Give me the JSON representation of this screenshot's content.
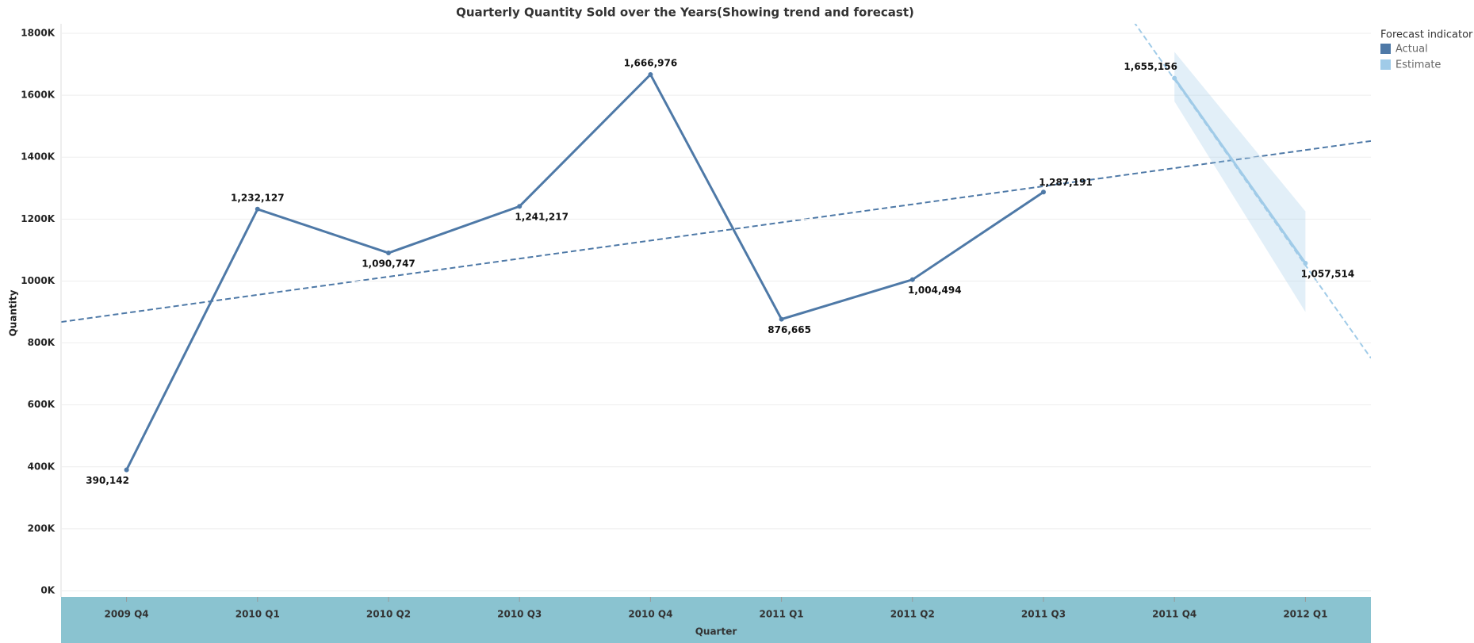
{
  "chart_data": {
    "type": "line",
    "title": "Quarterly Quantity Sold over the Years(Showing trend and forecast)",
    "x_label": "Quarter",
    "y_label": "Quantity",
    "legend_title": "Forecast indicator",
    "legend_position": "top-right",
    "grid": true,
    "categories": [
      "2009 Q4",
      "2010 Q1",
      "2010 Q2",
      "2010 Q3",
      "2010 Q4",
      "2011 Q1",
      "2011 Q2",
      "2011 Q3",
      "2011 Q4",
      "2012 Q1"
    ],
    "ylim": [
      0,
      1800000
    ],
    "yticks": [
      {
        "value": 0,
        "label": "0K"
      },
      {
        "value": 200000,
        "label": "200K"
      },
      {
        "value": 400000,
        "label": "400K"
      },
      {
        "value": 600000,
        "label": "600K"
      },
      {
        "value": 800000,
        "label": "800K"
      },
      {
        "value": 1000000,
        "label": "1000K"
      },
      {
        "value": 1200000,
        "label": "1200K"
      },
      {
        "value": 1400000,
        "label": "1400K"
      },
      {
        "value": 1600000,
        "label": "1600K"
      },
      {
        "value": 1800000,
        "label": "1800K"
      }
    ],
    "series": [
      {
        "name": "Actual",
        "color": "#4e79a7",
        "values": [
          390142,
          1232127,
          1090747,
          1241217,
          1666976,
          876665,
          1004494,
          1287191,
          null,
          null
        ],
        "value_labels": [
          "390,142",
          "1,232,127",
          "1,090,747",
          "1,241,217",
          "1,666,976",
          "876,665",
          "1,004,494",
          "1,287,191",
          null,
          null
        ],
        "trend_values": [
          897000,
          null,
          null,
          null,
          null,
          null,
          null,
          null,
          null,
          1423000
        ]
      },
      {
        "name": "Estimate",
        "color": "#a0cbe8",
        "values": [
          null,
          null,
          null,
          null,
          null,
          null,
          null,
          null,
          1655156,
          1057514
        ],
        "value_labels": [
          null,
          null,
          null,
          null,
          null,
          null,
          null,
          null,
          "1,655,156",
          "1,057,514"
        ],
        "trend_values": [
          null,
          null,
          null,
          null,
          null,
          null,
          null,
          null,
          1651000,
          1051000
        ],
        "band_low": [
          null,
          null,
          null,
          null,
          null,
          null,
          null,
          null,
          1580000,
          900000
        ],
        "band_high": [
          null,
          null,
          null,
          null,
          null,
          null,
          null,
          null,
          1740000,
          1225000
        ]
      }
    ]
  }
}
